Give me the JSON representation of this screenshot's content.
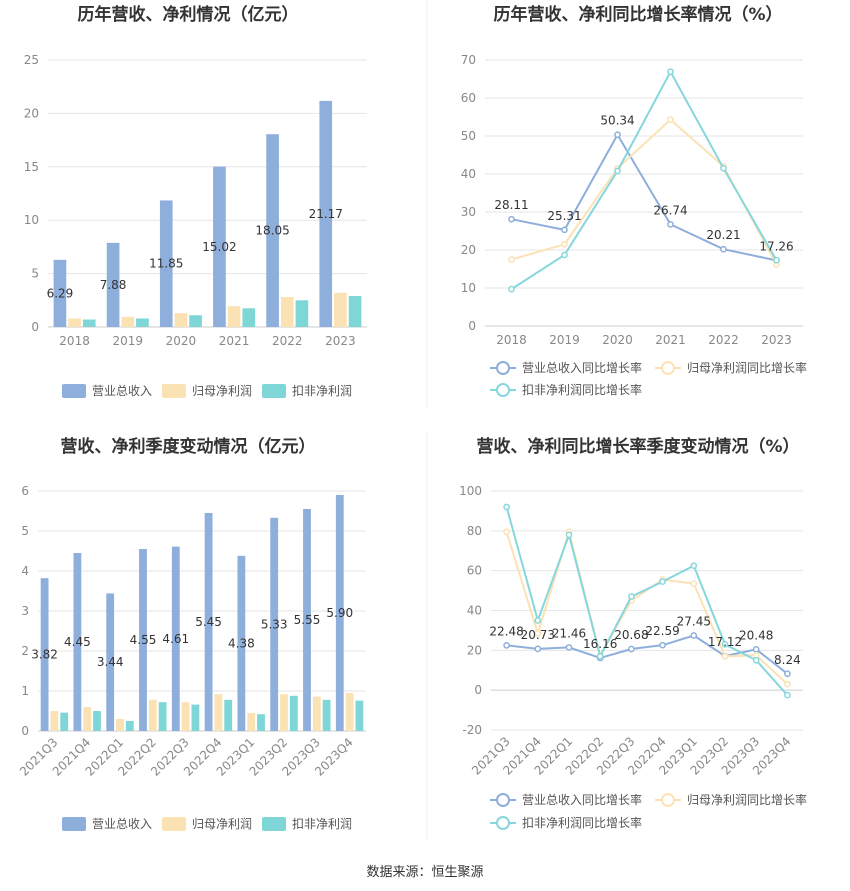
{
  "source_text": "数据来源：恒生聚源",
  "colors": {
    "revenue": "#8eaedb",
    "net_profit": "#fbe2b4",
    "deducted_profit": "#7fd6d6",
    "line_revenue": "#8eaedb",
    "line_net": "#fbe2b4",
    "line_deducted": "#86d7dc",
    "grid": "#e6e6e6",
    "axis_text": "#888888",
    "title": "#333333"
  },
  "chart_data": [
    {
      "type": "bar",
      "title": "历年营收、净利情况（亿元）",
      "categories": [
        "2018",
        "2019",
        "2020",
        "2021",
        "2022",
        "2023"
      ],
      "ylim": [
        0,
        25
      ],
      "yticks": [
        0,
        5,
        10,
        15,
        20,
        25
      ],
      "series": [
        {
          "name": "营业总收入",
          "values": [
            6.29,
            7.88,
            11.85,
            15.02,
            18.05,
            21.17
          ]
        },
        {
          "name": "归母净利润",
          "values": [
            0.8,
            0.95,
            1.3,
            1.95,
            2.8,
            3.2
          ]
        },
        {
          "name": "扣非净利润",
          "values": [
            0.7,
            0.8,
            1.1,
            1.75,
            2.5,
            2.9
          ]
        }
      ],
      "data_labels": [
        "6.29",
        "7.88",
        "11.85",
        "15.02",
        "18.05",
        "21.17"
      ]
    },
    {
      "type": "line",
      "title": "历年营收、净利同比增长率情况（%）",
      "categories": [
        "2018",
        "2019",
        "2020",
        "2021",
        "2022",
        "2023"
      ],
      "ylim": [
        0,
        70
      ],
      "yticks": [
        0,
        10,
        20,
        30,
        40,
        50,
        60,
        70
      ],
      "series": [
        {
          "name": "营业总收入同比增长率",
          "values": [
            28.11,
            25.31,
            50.34,
            26.74,
            20.21,
            17.26
          ]
        },
        {
          "name": "归母净利润同比增长率",
          "values": [
            17.5,
            21.5,
            41.5,
            54.3,
            42.0,
            16.2
          ]
        },
        {
          "name": "扣非净利润同比增长率",
          "values": [
            9.7,
            18.7,
            40.8,
            66.9,
            41.5,
            17.3
          ]
        }
      ],
      "data_labels": [
        "28.11",
        "25.31",
        "50.34",
        "26.74",
        "20.21",
        "17.26"
      ]
    },
    {
      "type": "bar",
      "title": "营收、净利季度变动情况（亿元）",
      "categories": [
        "2021Q3",
        "2021Q4",
        "2022Q1",
        "2022Q2",
        "2022Q3",
        "2022Q4",
        "2023Q1",
        "2023Q2",
        "2023Q3",
        "2023Q4"
      ],
      "ylim": [
        0,
        6
      ],
      "yticks": [
        0,
        1,
        2,
        3,
        4,
        5,
        6
      ],
      "series": [
        {
          "name": "营业总收入",
          "values": [
            3.82,
            4.45,
            3.44,
            4.55,
            4.61,
            5.45,
            4.38,
            5.33,
            5.55,
            5.9
          ]
        },
        {
          "name": "归母净利润",
          "values": [
            0.5,
            0.6,
            0.3,
            0.78,
            0.72,
            0.92,
            0.45,
            0.92,
            0.86,
            0.95
          ]
        },
        {
          "name": "扣非净利润",
          "values": [
            0.46,
            0.5,
            0.25,
            0.72,
            0.66,
            0.78,
            0.42,
            0.88,
            0.78,
            0.76
          ]
        }
      ],
      "data_labels": [
        "3.82",
        "4.45",
        "3.44",
        "4.55",
        "4.61",
        "5.45",
        "4.38",
        "5.33",
        "5.55",
        "5.90"
      ]
    },
    {
      "type": "line",
      "title": "营收、净利同比增长率季度变动情况（%）",
      "categories": [
        "2021Q3",
        "2021Q4",
        "2022Q1",
        "2022Q2",
        "2022Q3",
        "2022Q4",
        "2023Q1",
        "2023Q2",
        "2023Q3",
        "2023Q4"
      ],
      "ylim": [
        -20,
        100
      ],
      "yticks": [
        -20,
        0,
        20,
        40,
        60,
        80,
        100
      ],
      "series": [
        {
          "name": "营业总收入同比增长率",
          "values": [
            22.48,
            20.73,
            21.46,
            16.16,
            20.68,
            22.59,
            27.45,
            17.12,
            20.48,
            8.24
          ]
        },
        {
          "name": "归母净利润同比增长率",
          "values": [
            79.5,
            28.5,
            79.5,
            17.5,
            45.0,
            55.5,
            53.5,
            17.0,
            17.5,
            3.0
          ]
        },
        {
          "name": "扣非净利润同比增长率",
          "values": [
            92.0,
            35.0,
            78.0,
            17.0,
            47.0,
            54.5,
            62.5,
            23.0,
            15.0,
            -2.5
          ]
        }
      ],
      "data_labels": [
        "22.48",
        "20.73",
        "21.46",
        "16.16",
        "20.68",
        "22.59",
        "27.45",
        "17.12",
        "20.48",
        "8.24"
      ]
    }
  ]
}
